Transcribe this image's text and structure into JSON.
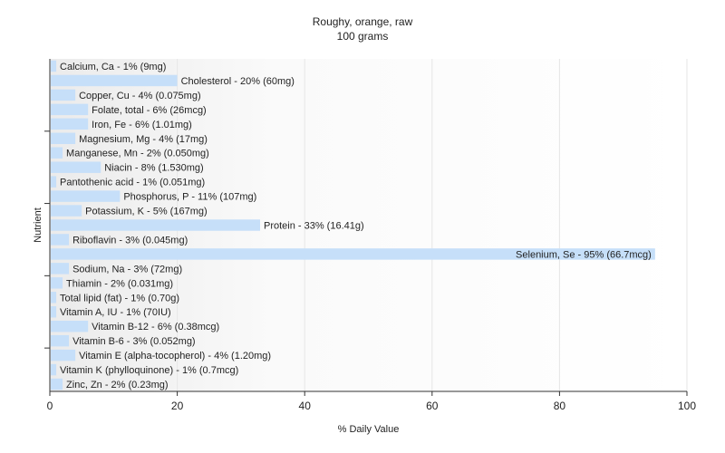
{
  "chart_data": {
    "type": "bar",
    "orientation": "horizontal",
    "title": "Roughy, orange, raw",
    "subtitle": "100 grams",
    "xlabel": "% Daily Value",
    "ylabel": "Nutrient",
    "xlim": [
      0,
      100
    ],
    "xticks": [
      "0",
      "20",
      "40",
      "60",
      "80",
      "100"
    ],
    "grid": true,
    "bar_color": "#c6dff9",
    "grid_color": "#e6e6e6",
    "axis_color": "#333333",
    "categories": [
      "Calcium, Ca",
      "Cholesterol",
      "Copper, Cu",
      "Folate, total",
      "Iron, Fe",
      "Magnesium, Mg",
      "Manganese, Mn",
      "Niacin",
      "Pantothenic acid",
      "Phosphorus, P",
      "Potassium, K",
      "Protein",
      "Riboflavin",
      "Selenium, Se",
      "Sodium, Na",
      "Thiamin",
      "Total lipid (fat)",
      "Vitamin A, IU",
      "Vitamin B-12",
      "Vitamin B-6",
      "Vitamin E (alpha-tocopherol)",
      "Vitamin K (phylloquinone)",
      "Zinc, Zn"
    ],
    "values": [
      1,
      20,
      4,
      6,
      6,
      4,
      2,
      8,
      1,
      11,
      5,
      33,
      3,
      95,
      3,
      2,
      1,
      1,
      6,
      3,
      4,
      1,
      2
    ],
    "labels": [
      "Calcium, Ca - 1% (9mg)",
      "Cholesterol - 20% (60mg)",
      "Copper, Cu - 4% (0.075mg)",
      "Folate, total - 6% (26mcg)",
      "Iron, Fe - 6% (1.01mg)",
      "Magnesium, Mg - 4% (17mg)",
      "Manganese, Mn - 2% (0.050mg)",
      "Niacin - 8% (1.530mg)",
      "Pantothenic acid - 1% (0.051mg)",
      "Phosphorus, P - 11% (107mg)",
      "Potassium, K - 5% (167mg)",
      "Protein - 33% (16.41g)",
      "Riboflavin - 3% (0.045mg)",
      "Selenium, Se - 95% (66.7mcg)",
      "Sodium, Na - 3% (72mg)",
      "Thiamin - 2% (0.031mg)",
      "Total lipid (fat) - 1% (0.70g)",
      "Vitamin A, IU - 1% (70IU)",
      "Vitamin B-12 - 6% (0.38mcg)",
      "Vitamin B-6 - 3% (0.052mg)",
      "Vitamin E (alpha-tocopherol) - 4% (1.20mg)",
      "Vitamin K (phylloquinone) - 1% (0.7mcg)",
      "Zinc, Zn - 2% (0.23mg)"
    ]
  }
}
